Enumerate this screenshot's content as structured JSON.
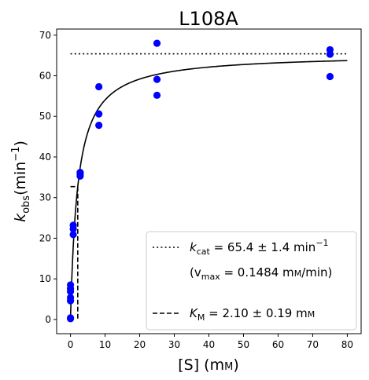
{
  "chart_data": {
    "type": "scatter",
    "title": "L108A",
    "xlabel_main": "[S] (m",
    "xlabel_unit_small": "M",
    "xlabel_close": ")",
    "ylabel_k": "k",
    "ylabel_sub": "obs",
    "ylabel_unit": "(min",
    "ylabel_sup": "−1",
    "ylabel_close": ")",
    "xlim": [
      -4,
      84
    ],
    "ylim": [
      -3.5,
      71.5
    ],
    "xticks": [
      0,
      10,
      20,
      30,
      40,
      50,
      60,
      70,
      80
    ],
    "yticks": [
      0,
      10,
      20,
      30,
      40,
      50,
      60,
      70
    ],
    "grid": false,
    "legend_position": "lower-right",
    "series": [
      {
        "type": "scatter",
        "color": "#0000ff",
        "points": [
          [
            0,
            0.2
          ],
          [
            0,
            0.4
          ],
          [
            0,
            4.6
          ],
          [
            0,
            5.4
          ],
          [
            0,
            6.9
          ],
          [
            0,
            7.6
          ],
          [
            0,
            8.5
          ],
          [
            0.8,
            20.9
          ],
          [
            0.8,
            22.3
          ],
          [
            0.8,
            23.2
          ],
          [
            2.8,
            35.3
          ],
          [
            2.8,
            35.8
          ],
          [
            2.8,
            36.2
          ],
          [
            8.2,
            47.8
          ],
          [
            8.2,
            50.6
          ],
          [
            8.2,
            57.3
          ],
          [
            25,
            55.2
          ],
          [
            25,
            59.1
          ],
          [
            25,
            68.0
          ],
          [
            75,
            59.8
          ],
          [
            75,
            65.3
          ],
          [
            75,
            66.4
          ]
        ]
      },
      {
        "type": "fit",
        "color": "#000000",
        "kcat": 65.4,
        "km": 2.1,
        "x_range": [
          0,
          80
        ]
      },
      {
        "type": "kcat-line",
        "color": "#000000",
        "y": 65.4,
        "x_range": [
          0,
          80
        ]
      },
      {
        "type": "km-marker",
        "color": "#000000",
        "x": 2.1,
        "y": 32.7,
        "x_start": 0
      }
    ],
    "legend": {
      "kcat_prefix": "k",
      "kcat_sub": "cat",
      "kcat_value": " = 65.4 ± 1.4 min",
      "kcat_sup": "−1",
      "vmax_open": "(v",
      "vmax_sub": "max",
      "vmax_value": " = 0.1484 m",
      "vmax_small": "M",
      "vmax_close": "/min)",
      "km_prefix": "K",
      "km_sub": "M",
      "km_value": " = 2.10 ± 0.19 m",
      "km_small": "M"
    }
  }
}
